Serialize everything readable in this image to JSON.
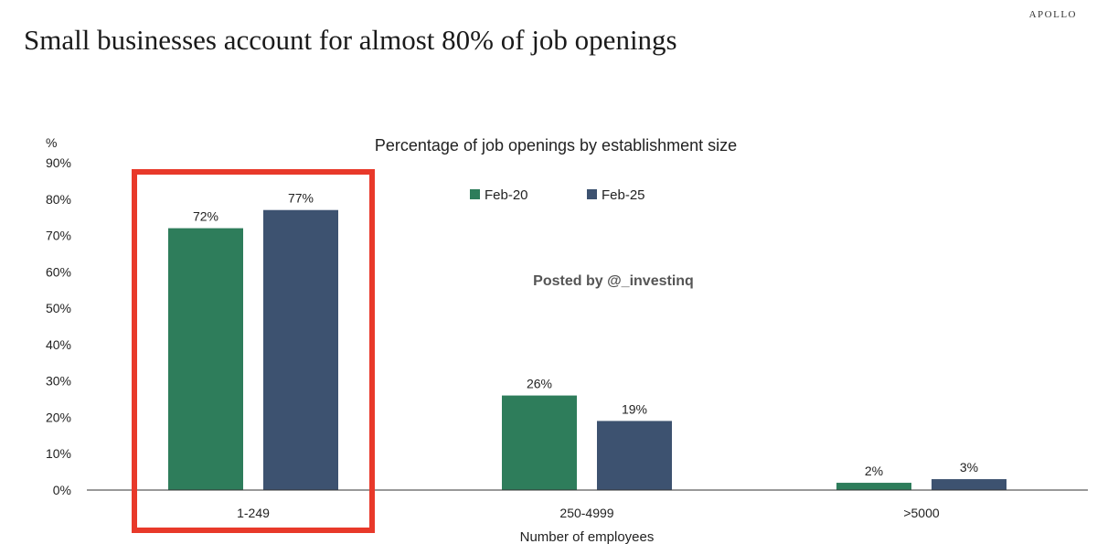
{
  "brand": "APOLLO",
  "headline": "Small businesses account for almost 80% of job openings",
  "watermark": "Posted by @_investinq",
  "colors": {
    "feb20": "#2e7d5b",
    "feb25": "#3d5270",
    "highlight": "#e8392a",
    "axis": "#333333"
  },
  "chart_data": {
    "type": "bar",
    "title": "Percentage of job openings by establishment size",
    "unit_label": "%",
    "xlabel": "Number of employees",
    "categories": [
      "1-249",
      "250-4999",
      ">5000"
    ],
    "series": [
      {
        "name": "Feb-20",
        "values": [
          72,
          26,
          2
        ],
        "labels": [
          "72%",
          "26%",
          "2%"
        ]
      },
      {
        "name": "Feb-25",
        "values": [
          77,
          19,
          3
        ],
        "labels": [
          "77%",
          "19%",
          "3%"
        ]
      }
    ],
    "ylim": [
      0,
      90
    ],
    "yticks": [
      "0%",
      "10%",
      "20%",
      "30%",
      "40%",
      "50%",
      "60%",
      "70%",
      "80%",
      "90%"
    ],
    "legend_position": "top-center",
    "grid": false,
    "highlighted_category": "1-249"
  }
}
